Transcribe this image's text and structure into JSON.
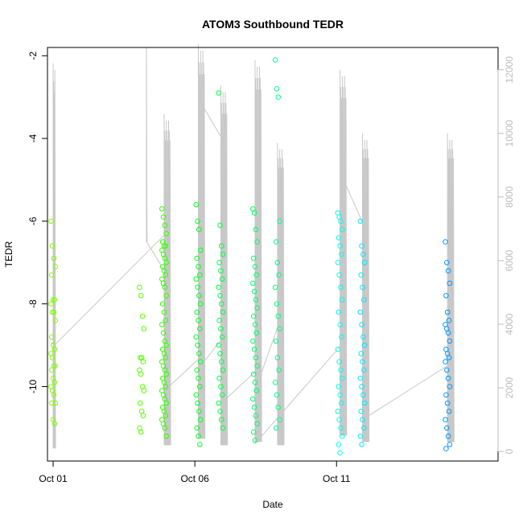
{
  "chart_data": {
    "type": "scatter",
    "title": "ATOM3 Southbound TEDR",
    "xlabel": "Date",
    "ylabel": "TEDR",
    "x_tick_labels": [
      {
        "date": "2019-10-01",
        "label": "Oct 01"
      },
      {
        "date": "2019-10-06",
        "label": "Oct 06"
      },
      {
        "date": "2019-10-11",
        "label": "Oct 11"
      }
    ],
    "xlim": [
      "2019-09-30T19:12",
      "2019-10-16T16:48"
    ],
    "ylim_left": [
      -11.8,
      -1.8
    ],
    "y_ticks_left": [
      -2,
      -4,
      -6,
      -8,
      -10
    ],
    "y_tick_labels_left": [
      "-2",
      "-4",
      "-6",
      "-8",
      "-10"
    ],
    "ylim_right": [
      -300,
      12700
    ],
    "y_ticks_right": [
      0,
      2000,
      4000,
      6000,
      8000,
      10000,
      12000
    ],
    "y_tick_labels_right": [
      "0",
      "2000",
      "4000",
      "6000",
      "8000",
      "10000",
      "12000"
    ],
    "right_axis_color": "#bbbbbb",
    "grid": false,
    "legend": "none",
    "background_line": {
      "axis": "right",
      "color": "#c8c8c8",
      "description_of_spikes": "vertical bursts",
      "bursts": [
        {
          "date": "2019-10-01T00:00",
          "top": 12200,
          "bottom": 100,
          "strands": 4,
          "spread_hours": 1.5
        },
        {
          "date": "2019-10-04T07:00",
          "top": 12700,
          "bottom": 6600,
          "strands": 1,
          "spread_hours": 0
        },
        {
          "date": "2019-10-04T22:00",
          "top": 10600,
          "bottom": 200,
          "strands": 9,
          "spread_hours": 5
        },
        {
          "date": "2019-10-06T03:00",
          "top": 12800,
          "bottom": 400,
          "strands": 9,
          "spread_hours": 5
        },
        {
          "date": "2019-10-06T22:00",
          "top": 11500,
          "bottom": 200,
          "strands": 9,
          "spread_hours": 5
        },
        {
          "date": "2019-10-08T03:00",
          "top": 12300,
          "bottom": 300,
          "strands": 9,
          "spread_hours": 5
        },
        {
          "date": "2019-10-08T22:00",
          "top": 9700,
          "bottom": 200,
          "strands": 9,
          "spread_hours": 5
        },
        {
          "date": "2019-10-11T03:00",
          "top": 12000,
          "bottom": 500,
          "strands": 9,
          "spread_hours": 5
        },
        {
          "date": "2019-10-11T22:00",
          "top": 10000,
          "bottom": 300,
          "strands": 9,
          "spread_hours": 5
        },
        {
          "date": "2019-10-14T22:00",
          "top": 10000,
          "bottom": 300,
          "strands": 9,
          "spread_hours": 5
        }
      ],
      "connectors": [
        {
          "from": {
            "date": "2019-10-01T00:00",
            "value": 3300
          },
          "to": {
            "date": "2019-10-04T22:00",
            "value": 6800
          }
        },
        {
          "from": {
            "date": "2019-10-04T07:00",
            "value": 6600
          },
          "to": {
            "date": "2019-10-04T22:00",
            "value": 5700
          }
        },
        {
          "from": {
            "date": "2019-10-04T22:00",
            "value": 1900
          },
          "to": {
            "date": "2019-10-06T03:00",
            "value": 2900
          }
        },
        {
          "from": {
            "date": "2019-10-06T03:00",
            "value": 11100
          },
          "to": {
            "date": "2019-10-06T22:00",
            "value": 9900
          }
        },
        {
          "from": {
            "date": "2019-10-06T03:00",
            "value": 2600
          },
          "to": {
            "date": "2019-10-06T22:00",
            "value": 3500
          }
        },
        {
          "from": {
            "date": "2019-10-06T22:00",
            "value": 1500
          },
          "to": {
            "date": "2019-10-08T03:00",
            "value": 2500
          }
        },
        {
          "from": {
            "date": "2019-10-08T03:00",
            "value": 1900
          },
          "to": {
            "date": "2019-10-08T22:00",
            "value": 3900
          }
        },
        {
          "from": {
            "date": "2019-10-08T03:00",
            "value": 250
          },
          "to": {
            "date": "2019-10-11T03:00",
            "value": 3300
          }
        },
        {
          "from": {
            "date": "2019-10-11T03:00",
            "value": 8800
          },
          "to": {
            "date": "2019-10-11T22:00",
            "value": 7200
          }
        },
        {
          "from": {
            "date": "2019-10-11T22:00",
            "value": 1000
          },
          "to": {
            "date": "2019-10-14T22:00",
            "value": 2700
          }
        }
      ]
    },
    "point_groups": [
      {
        "date": "2019-10-01T00:00",
        "color": "#80ff00",
        "values": [
          -6.0,
          -6.6,
          -6.9,
          -7.1,
          -7.3,
          -7.9,
          -7.9,
          -8.0,
          -8.2,
          -8.2,
          -8.4,
          -8.8,
          -9.0,
          -9.1,
          -9.2,
          -9.3,
          -9.5,
          -9.5,
          -9.6,
          -9.8,
          -9.9,
          -10.0,
          -10.1,
          -10.2,
          -10.4,
          -10.4,
          -10.8,
          -10.9
        ]
      },
      {
        "date": "2019-10-04T03:00",
        "color": "#55ff00",
        "values": [
          -7.6,
          -7.8,
          -8.3,
          -8.6,
          -9.3,
          -9.3,
          -9.4,
          -9.6,
          -9.7,
          -10.0,
          -10.1,
          -10.4,
          -10.6,
          -10.7,
          -11.0,
          -11.1
        ]
      },
      {
        "date": "2019-10-04T22:00",
        "color": "#33ff00",
        "values": [
          -5.7,
          -5.9,
          -6.1,
          -6.3,
          -6.5,
          -6.6,
          -6.6,
          -6.7,
          -6.8,
          -6.9,
          -7.0,
          -7.1,
          -7.2,
          -7.3,
          -7.4,
          -7.5,
          -7.6,
          -7.8,
          -8.0,
          -8.2,
          -8.4,
          -8.5,
          -8.7,
          -8.9,
          -9.0,
          -9.1,
          -9.2,
          -9.3,
          -9.4,
          -9.5,
          -9.6,
          -9.7,
          -9.8,
          -9.9,
          -10.0,
          -10.1,
          -10.2,
          -10.3,
          -10.4,
          -10.5,
          -10.6,
          -10.7,
          -10.8,
          -10.9,
          -11.0,
          -11.2
        ]
      },
      {
        "date": "2019-10-06T03:00",
        "color": "#00ff22",
        "values": [
          -5.6,
          -6.0,
          -6.2,
          -6.7,
          -6.9,
          -7.1,
          -7.3,
          -7.4,
          -7.6,
          -7.8,
          -8.0,
          -8.2,
          -8.4,
          -8.6,
          -8.8,
          -9.0,
          -9.2,
          -9.4,
          -9.6,
          -9.8,
          -10.0,
          -10.2,
          -10.4,
          -10.6,
          -10.8,
          -11.0,
          -11.2,
          -11.4
        ]
      },
      {
        "date": "2019-10-06T22:00",
        "color": "#00ff44",
        "values": [
          -2.9,
          -6.1,
          -6.6,
          -6.8,
          -7.0,
          -7.2,
          -7.4,
          -7.6,
          -7.8,
          -8.0,
          -8.2,
          -8.4,
          -8.6,
          -8.8,
          -9.0,
          -9.2,
          -9.4,
          -9.6,
          -9.8,
          -10.0,
          -10.2,
          -10.4,
          -10.6,
          -10.8,
          -11.0
        ]
      },
      {
        "date": "2019-10-08T03:00",
        "color": "#00ff66",
        "values": [
          -5.7,
          -5.8,
          -6.2,
          -6.5,
          -6.9,
          -7.1,
          -7.3,
          -7.5,
          -7.7,
          -7.9,
          -8.1,
          -8.3,
          -8.5,
          -8.7,
          -8.9,
          -9.1,
          -9.3,
          -9.5,
          -9.7,
          -9.9,
          -10.1,
          -10.3,
          -10.5,
          -10.7,
          -10.9,
          -11.1,
          -11.3
        ]
      },
      {
        "date": "2019-10-08T22:00",
        "color": "#00ff88",
        "values": [
          -2.1,
          -2.8,
          -3.0,
          -6.0,
          -6.5,
          -7.0,
          -7.3,
          -7.6,
          -8.0,
          -8.3,
          -8.6,
          -8.9,
          -9.3,
          -9.6,
          -9.9,
          -10.2,
          -10.5,
          -10.8,
          -11.0
        ]
      },
      {
        "date": "2019-10-11T03:00",
        "color": "#00ffee",
        "values": [
          -5.8,
          -5.9,
          -6.0,
          -6.2,
          -6.4,
          -6.6,
          -6.8,
          -7.0,
          -7.3,
          -7.6,
          -7.9,
          -8.2,
          -8.5,
          -8.8,
          -9.1,
          -9.4,
          -9.6,
          -9.8,
          -10.0,
          -10.2,
          -10.4,
          -10.6,
          -10.8,
          -11.0,
          -11.2,
          -11.4,
          -11.6
        ]
      },
      {
        "date": "2019-10-11T22:00",
        "color": "#00e8ff",
        "values": [
          -6.0,
          -6.6,
          -6.8,
          -7.0,
          -7.3,
          -7.6,
          -7.9,
          -8.2,
          -8.5,
          -8.8,
          -9.0,
          -9.2,
          -9.4,
          -9.6,
          -9.8,
          -10.0,
          -10.2,
          -10.4,
          -10.6,
          -10.8,
          -11.0,
          -11.2,
          -11.4
        ]
      },
      {
        "date": "2019-10-14T22:00",
        "color": "#0099ff",
        "values": [
          -6.5,
          -7.0,
          -7.2,
          -7.5,
          -7.8,
          -8.2,
          -8.4,
          -8.5,
          -8.6,
          -8.7,
          -8.9,
          -9.1,
          -9.2,
          -9.3,
          -9.4,
          -9.6,
          -9.8,
          -10.0,
          -10.2,
          -10.4,
          -10.6,
          -10.8,
          -11.0,
          -11.2,
          -11.4,
          -11.5
        ]
      }
    ]
  }
}
